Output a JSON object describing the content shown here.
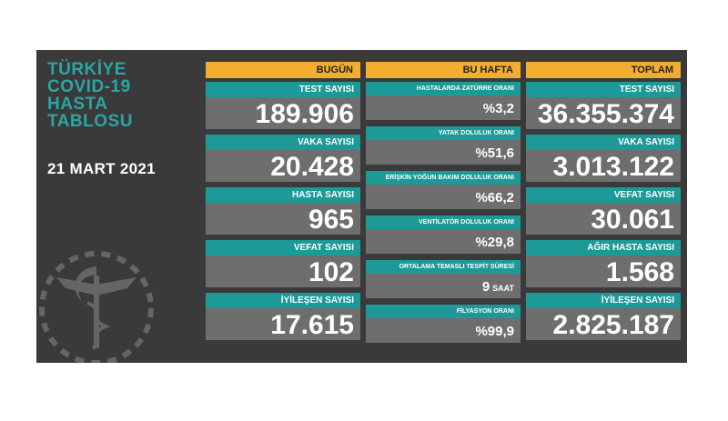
{
  "title_lines": [
    "TÜRKİYE",
    "COVID-19",
    "HASTA",
    "TABLOSU"
  ],
  "date": "21 MART 2021",
  "columns": {
    "today": "BUGÜN",
    "week": "BU HAFTA",
    "total": "TOPLAM"
  },
  "today": [
    {
      "label": "TEST SAYISI",
      "value": "189.906"
    },
    {
      "label": "VAKA SAYISI",
      "value": "20.428"
    },
    {
      "label": "HASTA SAYISI",
      "value": "965"
    },
    {
      "label": "VEFAT SAYISI",
      "value": "102"
    },
    {
      "label": "İYİLEŞEN SAYISI",
      "value": "17.615"
    }
  ],
  "week": [
    {
      "label": "HASTALARDA ZATÜRRE ORANI",
      "value": "%3,2"
    },
    {
      "label": "YATAK DOLULUK ORANI",
      "value": "%51,6"
    },
    {
      "label": "ERİŞKİN YOĞUN BAKIM DOLULUK ORANI",
      "value": "%66,2"
    },
    {
      "label": "VENTİLATÖR DOLULUK ORANI",
      "value": "%29,8"
    },
    {
      "label": "ORTALAMA TEMASLI TESPİT SÜRESİ",
      "value": "9",
      "unit": "SAAT"
    },
    {
      "label": "FİLYASYON ORANI",
      "value": "%99,9"
    }
  ],
  "total": [
    {
      "label": "TEST SAYISI",
      "value": "36.355.374"
    },
    {
      "label": "VAKA SAYISI",
      "value": "3.013.122"
    },
    {
      "label": "VEFAT SAYISI",
      "value": "30.061"
    },
    {
      "label": "AĞIR HASTA SAYISI",
      "value": "1.568"
    },
    {
      "label": "İYİLEŞEN SAYISI",
      "value": "2.825.187"
    }
  ],
  "colors": {
    "accent": "#1d9a97",
    "header": "#f3ae2f",
    "panel": "#3a3a3a",
    "tile": "#6e6e6e",
    "title": "#2aa6a3"
  },
  "icons": [
    "health-ministry-emblem-icon"
  ]
}
